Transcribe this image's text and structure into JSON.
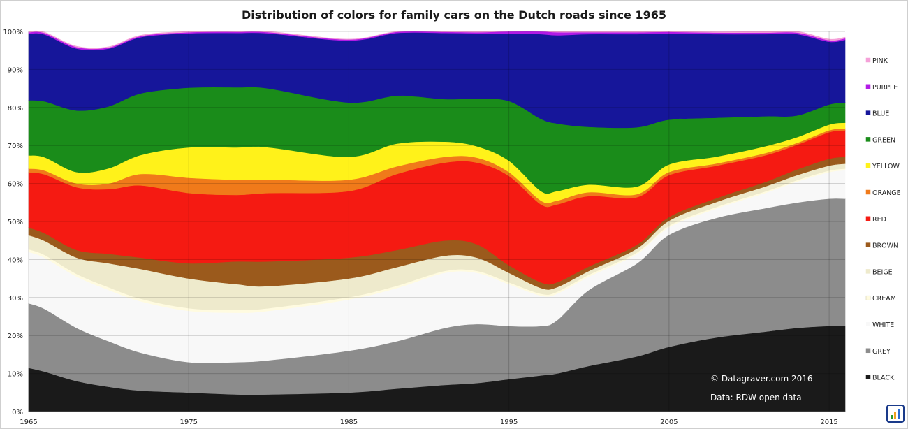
{
  "chart_data": {
    "type": "area",
    "stacked": "percent",
    "title": "Distribution of colors for family cars on the Dutch roads since 1965",
    "xlabel": "",
    "ylabel": "",
    "x": [
      1965,
      1966,
      1968,
      1970,
      1972,
      1975,
      1978,
      1980,
      1985,
      1988,
      1991,
      1993,
      1995,
      1997,
      1998,
      2000,
      2003,
      2005,
      2008,
      2011,
      2013,
      2015,
      2016
    ],
    "x_ticks": [
      1965,
      1975,
      1985,
      1995,
      2005,
      2015
    ],
    "y_ticks": [
      "0%",
      "10%",
      "20%",
      "30%",
      "40%",
      "50%",
      "60%",
      "70%",
      "80%",
      "90%",
      "100%"
    ],
    "ylim": [
      0,
      100
    ],
    "grid": true,
    "legend_position": "right",
    "series": [
      {
        "name": "BLACK",
        "color": "#1a1a1a",
        "values": [
          11.5,
          10.5,
          8,
          6.5,
          5.5,
          5,
          4.5,
          4.5,
          5,
          6,
          7,
          7.5,
          8.5,
          9.5,
          10,
          12,
          14.5,
          17,
          19.5,
          21,
          22,
          22.5,
          22.5
        ]
      },
      {
        "name": "GREY",
        "color": "#8c8c8c",
        "values": [
          17,
          16.5,
          14,
          12,
          10,
          8,
          8.5,
          9,
          11,
          12.5,
          15,
          15.5,
          14,
          13,
          14,
          20,
          24.5,
          29.5,
          31.5,
          32.5,
          33,
          33.5,
          33.5
        ]
      },
      {
        "name": "WHITE",
        "color": "#f8f8f8",
        "values": [
          13.5,
          13.5,
          13.5,
          13.5,
          13.5,
          13.5,
          13,
          13,
          13.5,
          14,
          14.5,
          13.5,
          11,
          8,
          7,
          3.5,
          2.5,
          2,
          2.5,
          4,
          5.5,
          7,
          7.5
        ]
      },
      {
        "name": "CREAM",
        "color": "#fffbe0",
        "values": [
          0.7,
          0.7,
          0.7,
          0.7,
          0.7,
          0.7,
          0.7,
          0.7,
          0.6,
          0.6,
          0.5,
          0.5,
          0.5,
          0.5,
          0.5,
          0.5,
          0.4,
          0.4,
          0.4,
          0.4,
          0.4,
          0.4,
          0.4
        ]
      },
      {
        "name": "BEIGE",
        "color": "#eeeacc",
        "values": [
          3.7,
          3.7,
          4.3,
          6.3,
          7.8,
          7.8,
          6.8,
          5.8,
          4.9,
          4.9,
          4.0,
          3.5,
          2.5,
          1.5,
          1.2,
          1,
          1,
          1.3,
          1.3,
          1.3,
          1.3,
          1.3,
          1.3
        ]
      },
      {
        "name": "BROWN",
        "color": "#9b5a1c",
        "values": [
          2,
          2,
          2,
          2.5,
          3,
          4,
          6,
          6.5,
          5.5,
          4.5,
          4.0,
          3.5,
          2,
          1.5,
          1.3,
          1.2,
          1,
          1,
          1,
          1.2,
          1.5,
          1.8,
          1.8
        ]
      },
      {
        "name": "RED",
        "color": "#f51a12",
        "values": [
          14.5,
          15.5,
          16.5,
          17,
          19,
          18.5,
          17.5,
          18,
          17.5,
          20,
          20.5,
          21.5,
          23.5,
          20.5,
          20.5,
          18.5,
          12.5,
          11,
          8.5,
          7,
          6.5,
          7,
          7
        ]
      },
      {
        "name": "ORANGE",
        "color": "#f07a1a",
        "values": [
          1,
          1,
          1,
          1.5,
          3,
          4,
          4,
          3.5,
          3,
          2,
          1.5,
          1.3,
          1,
          1,
          1,
          1,
          0.8,
          0.8,
          0.6,
          0.6,
          0.5,
          0.5,
          0.5
        ]
      },
      {
        "name": "YELLOW",
        "color": "#fff21a",
        "values": [
          3.5,
          3.5,
          3,
          4,
          5,
          8,
          8.5,
          8.5,
          6,
          6,
          4,
          3,
          3,
          2.5,
          2.5,
          2,
          2,
          2,
          1.8,
          1.8,
          1.5,
          1.5,
          1.5
        ]
      },
      {
        "name": "GREEN",
        "color": "#1a8c1a",
        "values": [
          14.5,
          14.7,
          16.2,
          16.3,
          16.2,
          15.7,
          15.8,
          15.5,
          14.3,
          12.6,
          11.2,
          12.5,
          15.7,
          19,
          17.8,
          15.2,
          15.6,
          11.8,
          10.2,
          7.9,
          5.7,
          5.3,
          5.3
        ]
      },
      {
        "name": "BLUE",
        "color": "#16169a",
        "values": [
          17.5,
          17.6,
          16.3,
          15.2,
          14.8,
          14.3,
          14.3,
          14.5,
          16.3,
          16.5,
          17.4,
          17.2,
          17.8,
          22.3,
          23.2,
          24.4,
          24.5,
          22.7,
          22,
          21.6,
          21.4,
          16.5,
          16.5
        ]
      },
      {
        "name": "PURPLE",
        "color": "#b21ae6",
        "values": [
          0.4,
          0.4,
          0.4,
          0.3,
          0.3,
          0.3,
          0.3,
          0.3,
          0.3,
          0.3,
          0.3,
          0.3,
          0.5,
          0.7,
          0.8,
          0.5,
          0.5,
          0.4,
          0.4,
          0.4,
          0.4,
          0.4,
          0.4
        ]
      },
      {
        "name": "PINK",
        "color": "#f5a0d8",
        "values": [
          0.2,
          0.2,
          0.2,
          0.2,
          0.2,
          0.2,
          0.1,
          0.2,
          0.1,
          0.1,
          0.1,
          0.2,
          0.1,
          0.1,
          0.2,
          0.2,
          0.2,
          0.1,
          0.2,
          0.3,
          0.3,
          0.3,
          0.3
        ]
      }
    ],
    "annotations": [
      "© Datagraver.com 2016",
      "Data: RDW open data"
    ]
  }
}
